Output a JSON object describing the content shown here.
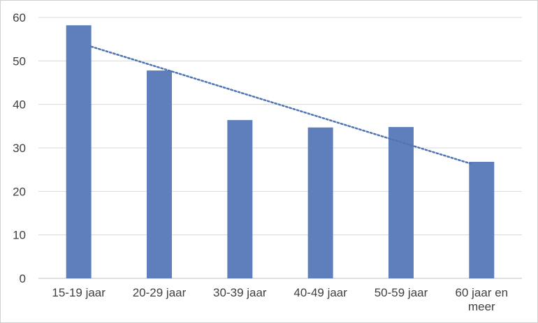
{
  "chart_data": {
    "type": "bar",
    "categories": [
      [
        "15-19 jaar"
      ],
      [
        "20-29 jaar"
      ],
      [
        "30-39 jaar"
      ],
      [
        "40-49 jaar"
      ],
      [
        "50-59 jaar"
      ],
      [
        "60 jaar en",
        "meer"
      ]
    ],
    "values": [
      58.2,
      47.8,
      36.4,
      34.7,
      34.8,
      26.8
    ],
    "trendline": {
      "type": "linear",
      "style": "dotted",
      "start": 53.3,
      "end": 26.3
    },
    "title": "",
    "xlabel": "",
    "ylabel": "",
    "ylim": [
      0,
      60
    ],
    "yticks": [
      "0",
      "10",
      "20",
      "30",
      "40",
      "50",
      "60"
    ],
    "grid": true,
    "legend": "none",
    "colors": {
      "bar": "#5e7fbb",
      "trend": "#4f73b3",
      "grid": "#d9d9d9",
      "text": "#404040"
    }
  }
}
